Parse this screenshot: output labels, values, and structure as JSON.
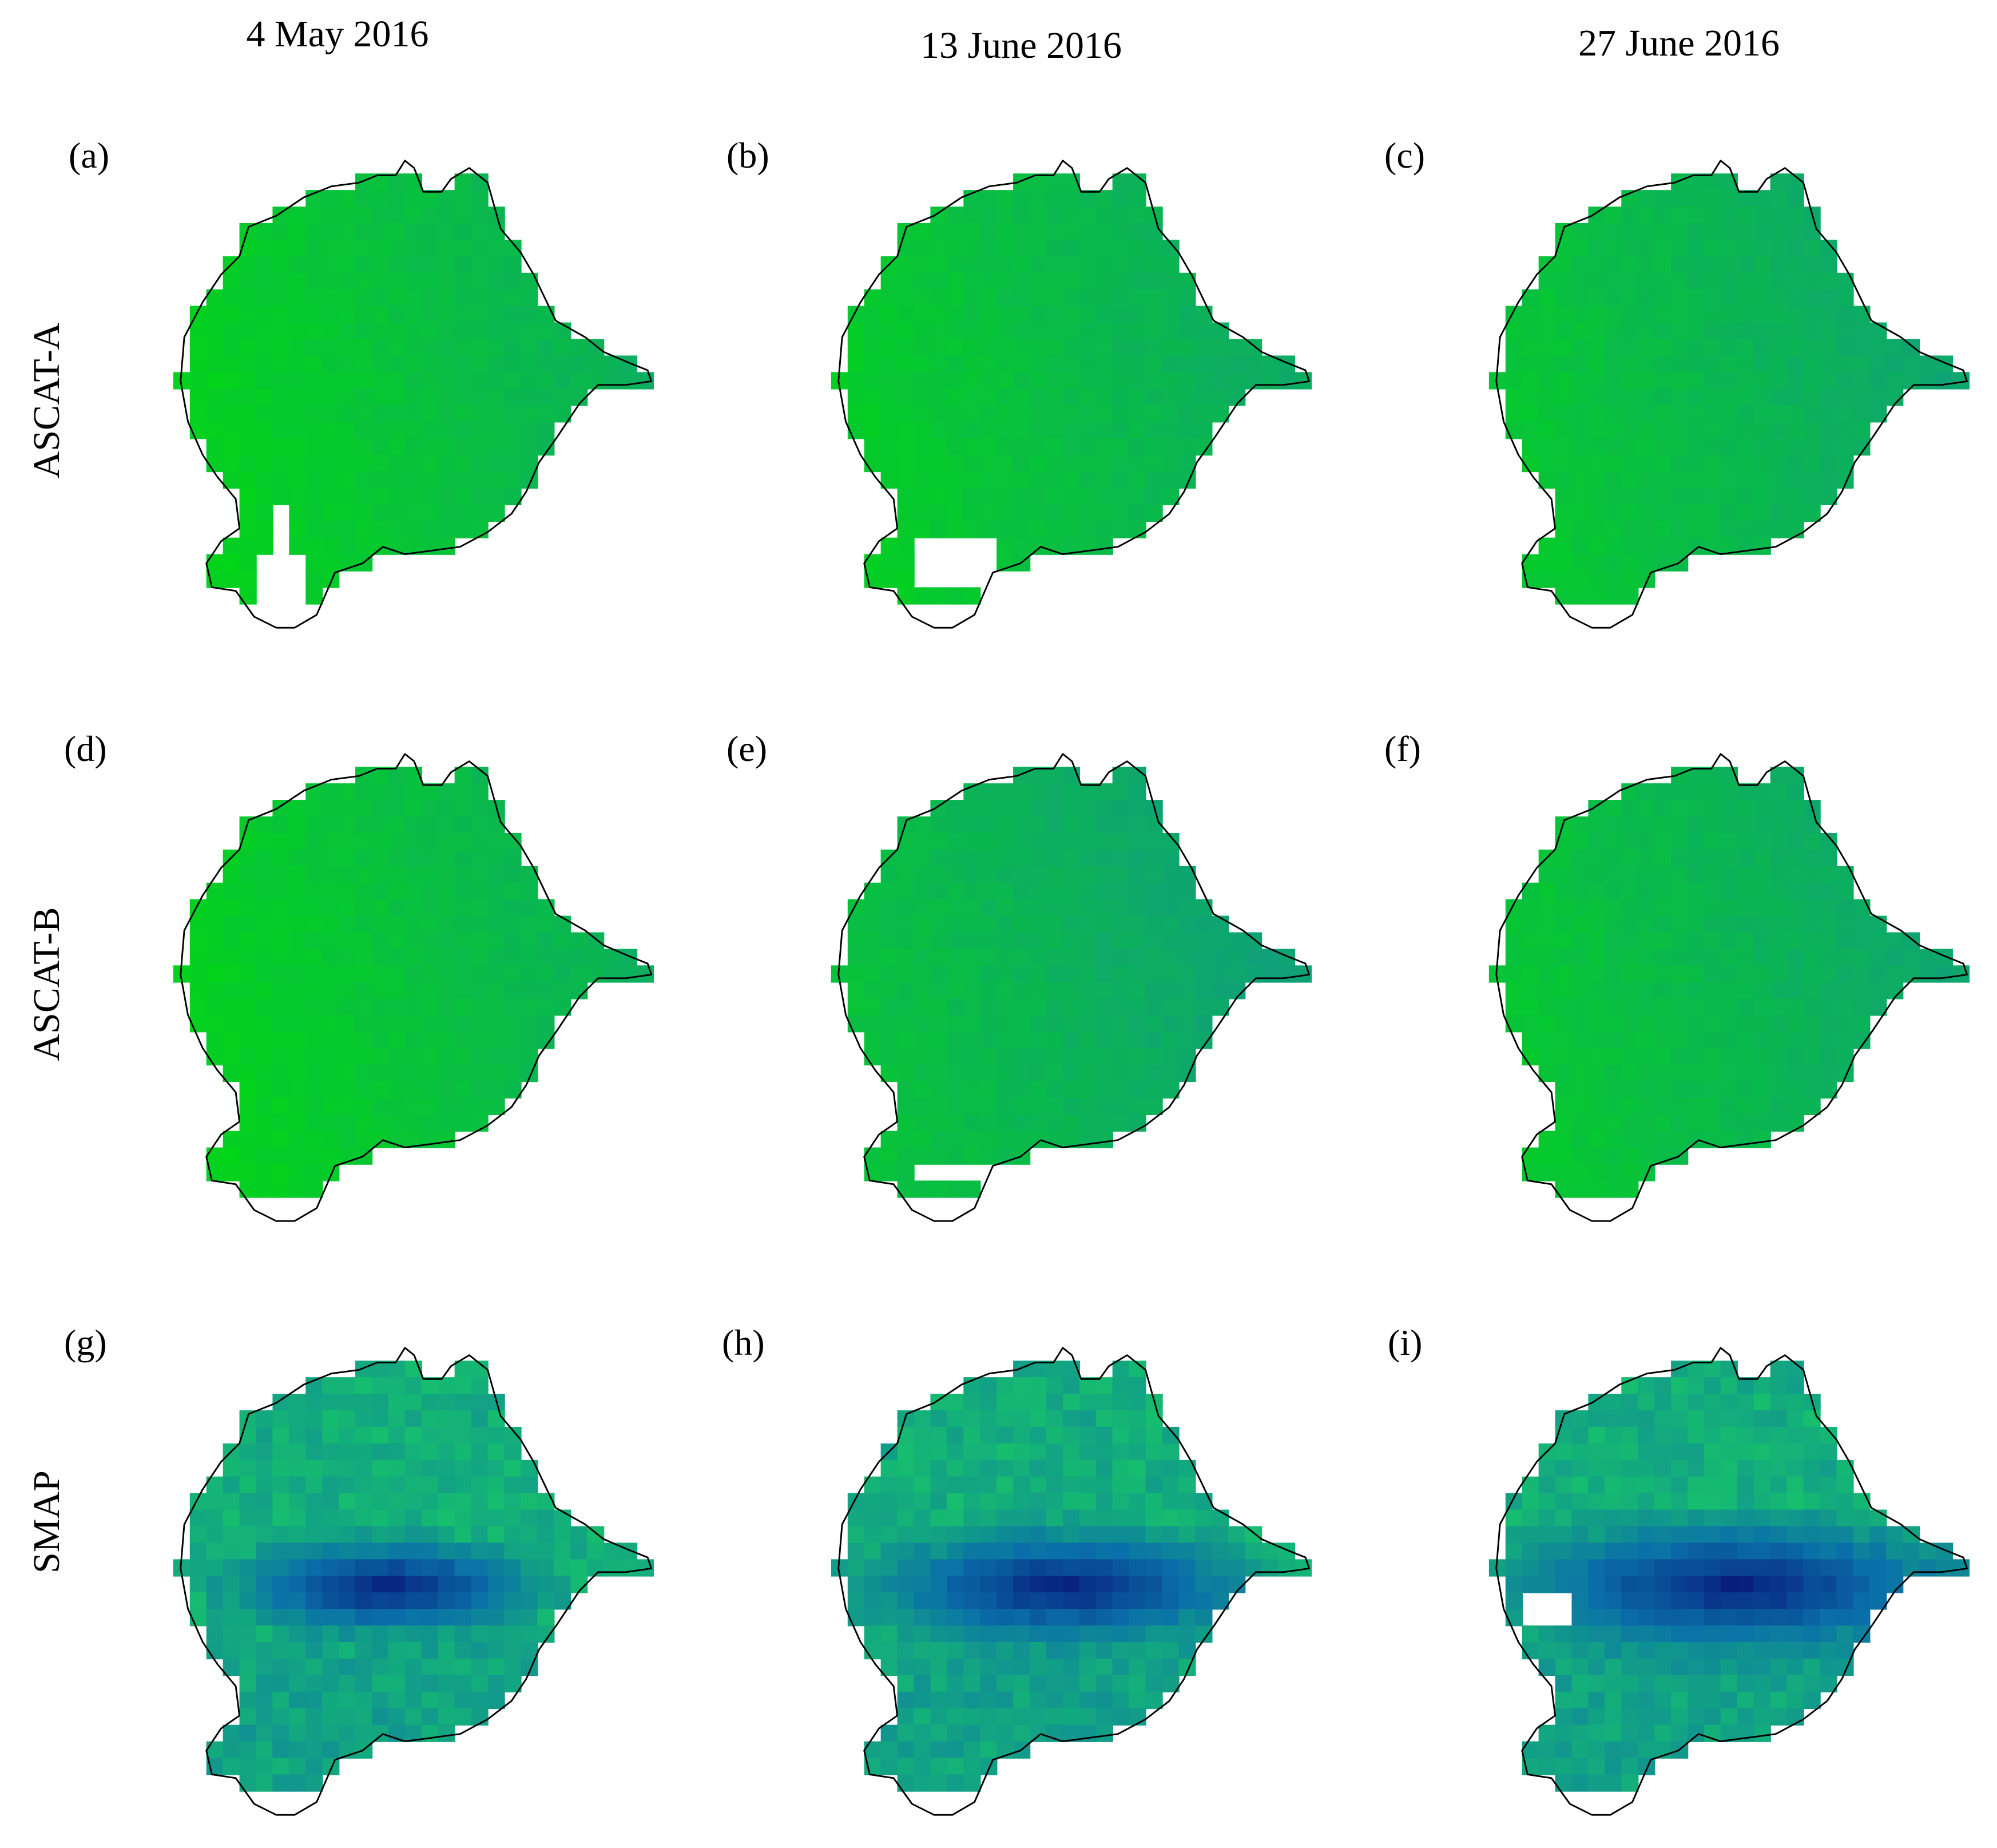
{
  "columns": [
    {
      "title": "4 May 2016"
    },
    {
      "title": "13 June 2016"
    },
    {
      "title": "27 June 2016"
    }
  ],
  "rows": [
    {
      "label": "ASCAT-A"
    },
    {
      "label": "ASCAT-B"
    },
    {
      "label": "SMAP"
    }
  ],
  "panels": [
    {
      "label": "(a)",
      "row": 0,
      "col": 0
    },
    {
      "label": "(b)",
      "row": 0,
      "col": 1
    },
    {
      "label": "(c)",
      "row": 0,
      "col": 2
    },
    {
      "label": "(d)",
      "row": 1,
      "col": 0
    },
    {
      "label": "(e)",
      "row": 1,
      "col": 1
    },
    {
      "label": "(f)",
      "row": 1,
      "col": 2
    },
    {
      "label": "(g)",
      "row": 2,
      "col": 0
    },
    {
      "label": "(h)",
      "row": 2,
      "col": 1
    },
    {
      "label": "(i)",
      "row": 2,
      "col": 2
    }
  ],
  "colors": {
    "high_green": "#00e000",
    "teal": "#11a07a",
    "dark_blue": "#081c7c",
    "outline": "#000000"
  }
}
